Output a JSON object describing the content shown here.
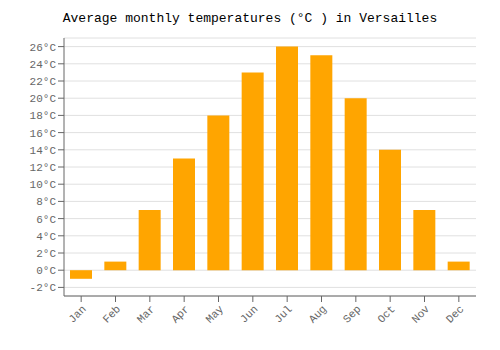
{
  "chart_data": {
    "type": "bar",
    "title": "Average monthly temperatures (°C ) in Versailles",
    "categories": [
      "Jan",
      "Feb",
      "Mar",
      "Apr",
      "May",
      "Jun",
      "Jul",
      "Aug",
      "Sep",
      "Oct",
      "Nov",
      "Dec"
    ],
    "values": [
      -1,
      1,
      7,
      13,
      18,
      23,
      26,
      25,
      20,
      14,
      7,
      1
    ],
    "color": "#FFA500",
    "ylim": [
      -3,
      27
    ],
    "yticks": [
      {
        "value": -2,
        "label": "-2°C"
      },
      {
        "value": 0,
        "label": "0°C"
      },
      {
        "value": 2,
        "label": "2°C"
      },
      {
        "value": 4,
        "label": "4°C"
      },
      {
        "value": 6,
        "label": "6°C"
      },
      {
        "value": 8,
        "label": "8°C"
      },
      {
        "value": 10,
        "label": "10°C"
      },
      {
        "value": 12,
        "label": "12°C"
      },
      {
        "value": 14,
        "label": "14°C"
      },
      {
        "value": 16,
        "label": "16°C"
      },
      {
        "value": 18,
        "label": "18°C"
      },
      {
        "value": 20,
        "label": "20°C"
      },
      {
        "value": 22,
        "label": "22°C"
      },
      {
        "value": 24,
        "label": "24°C"
      },
      {
        "value": 26,
        "label": "26°C"
      }
    ],
    "grid": true
  }
}
